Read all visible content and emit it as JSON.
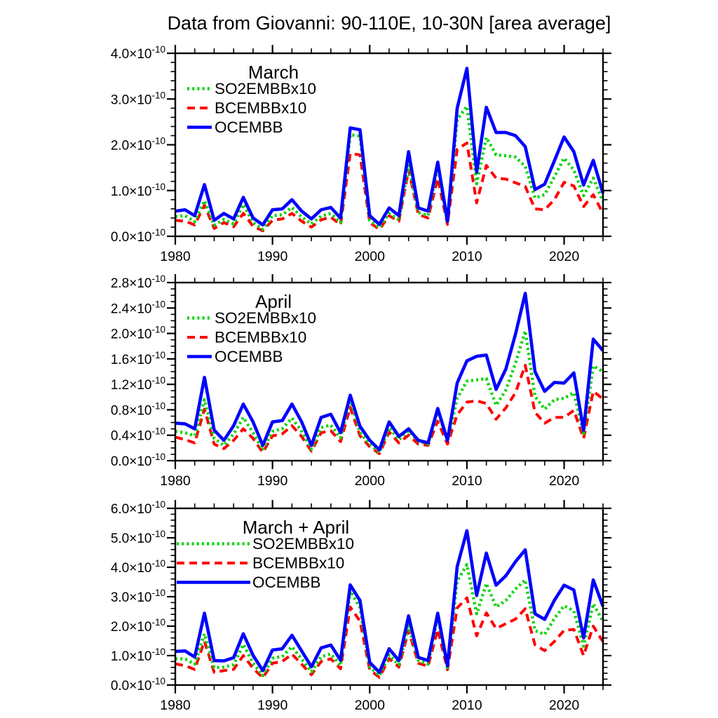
{
  "title": "Data from Giovanni: 90-110E, 10-30N [area average]",
  "x_axis": {
    "tick_labels": [
      "1980",
      "1990",
      "2000",
      "2010",
      "2020"
    ],
    "range": [
      1980,
      2024
    ],
    "minor_step_years": 2
  },
  "y_axis": {
    "exponent_suffix": "×10",
    "exponent": "-10",
    "unit": "1e-10"
  },
  "colors": {
    "so2": "#00d400",
    "bc": "#ff0000",
    "oc": "#0000ff",
    "axis": "#000000"
  },
  "chart_data": [
    {
      "type": "line",
      "title": "March",
      "x_start": 1980,
      "x_end": 2024,
      "ylim": [
        0,
        4.0
      ],
      "y_major": 1.0,
      "y_minor": 0.2,
      "unit": "1e-10",
      "legend_position": "top-left-inside",
      "series": [
        {
          "name": "SO2EMBBx10",
          "color": "#00d400",
          "style": "dotted",
          "values": [
            0.43,
            0.45,
            0.32,
            0.78,
            0.24,
            0.37,
            0.27,
            0.7,
            0.3,
            0.15,
            0.45,
            0.47,
            0.63,
            0.42,
            0.27,
            0.44,
            0.5,
            0.3,
            2.22,
            2.19,
            0.35,
            0.19,
            0.5,
            0.36,
            1.55,
            0.52,
            0.45,
            1.55,
            0.28,
            2.55,
            2.84,
            1.15,
            2.16,
            1.78,
            1.76,
            1.73,
            1.53,
            0.84,
            0.91,
            1.3,
            1.71,
            1.45,
            0.89,
            1.27,
            0.76
          ]
        },
        {
          "name": "BCEMBBx10",
          "color": "#ff0000",
          "style": "dashed",
          "values": [
            0.35,
            0.33,
            0.25,
            0.68,
            0.17,
            0.3,
            0.21,
            0.5,
            0.22,
            0.12,
            0.35,
            0.38,
            0.5,
            0.33,
            0.2,
            0.36,
            0.42,
            0.25,
            1.81,
            1.78,
            0.3,
            0.15,
            0.45,
            0.33,
            1.45,
            0.48,
            0.4,
            1.27,
            0.26,
            1.9,
            2.04,
            0.73,
            1.55,
            1.27,
            1.25,
            1.17,
            1.09,
            0.6,
            0.58,
            0.8,
            1.18,
            1.1,
            0.65,
            0.91,
            0.5
          ]
        },
        {
          "name": "OCEMBB",
          "color": "#0000ff",
          "style": "solid",
          "values": [
            0.55,
            0.58,
            0.45,
            1.13,
            0.35,
            0.5,
            0.38,
            0.85,
            0.4,
            0.25,
            0.58,
            0.6,
            0.8,
            0.55,
            0.38,
            0.58,
            0.63,
            0.4,
            2.37,
            2.33,
            0.45,
            0.26,
            0.62,
            0.45,
            1.85,
            0.62,
            0.55,
            1.62,
            0.33,
            2.8,
            3.67,
            1.4,
            2.82,
            2.27,
            2.27,
            2.2,
            1.96,
            1.02,
            1.14,
            1.65,
            2.17,
            1.85,
            1.12,
            1.66,
            0.94
          ]
        }
      ]
    },
    {
      "type": "line",
      "title": "April",
      "x_start": 1980,
      "x_end": 2024,
      "ylim": [
        0,
        2.8
      ],
      "y_major": 0.4,
      "y_minor": 0.1,
      "unit": "1e-10",
      "legend_position": "top-left-inside",
      "series": [
        {
          "name": "SO2EMBBx10",
          "color": "#00d400",
          "style": "dotted",
          "values": [
            0.46,
            0.44,
            0.39,
            0.96,
            0.35,
            0.24,
            0.42,
            0.68,
            0.44,
            0.17,
            0.46,
            0.5,
            0.67,
            0.46,
            0.18,
            0.52,
            0.56,
            0.36,
            0.97,
            0.44,
            0.26,
            0.13,
            0.52,
            0.33,
            0.47,
            0.31,
            0.26,
            0.79,
            0.31,
            0.98,
            1.25,
            1.27,
            1.29,
            0.87,
            1.11,
            1.53,
            2.04,
            1.01,
            0.81,
            0.96,
            0.98,
            1.07,
            0.43,
            1.49,
            1.4
          ]
        },
        {
          "name": "BCEMBBx10",
          "color": "#ff0000",
          "style": "dashed",
          "values": [
            0.37,
            0.33,
            0.28,
            0.81,
            0.26,
            0.19,
            0.32,
            0.5,
            0.35,
            0.13,
            0.39,
            0.42,
            0.55,
            0.38,
            0.15,
            0.44,
            0.47,
            0.3,
            0.84,
            0.39,
            0.22,
            0.11,
            0.45,
            0.28,
            0.4,
            0.26,
            0.24,
            0.62,
            0.26,
            0.72,
            0.92,
            0.94,
            0.9,
            0.65,
            0.83,
            1.07,
            1.5,
            0.76,
            0.59,
            0.68,
            0.68,
            0.79,
            0.35,
            1.09,
            0.97
          ]
        },
        {
          "name": "OCEMBB",
          "color": "#0000ff",
          "style": "solid",
          "values": [
            0.59,
            0.58,
            0.5,
            1.31,
            0.48,
            0.32,
            0.55,
            0.89,
            0.61,
            0.24,
            0.61,
            0.63,
            0.89,
            0.61,
            0.24,
            0.68,
            0.73,
            0.44,
            1.03,
            0.54,
            0.32,
            0.17,
            0.61,
            0.38,
            0.5,
            0.32,
            0.28,
            0.82,
            0.32,
            1.22,
            1.57,
            1.64,
            1.66,
            1.12,
            1.44,
            1.99,
            2.63,
            1.4,
            1.09,
            1.23,
            1.22,
            1.38,
            0.48,
            1.91,
            1.73
          ]
        }
      ]
    },
    {
      "type": "line",
      "title": "March + April",
      "x_start": 1980,
      "x_end": 2024,
      "ylim": [
        0,
        6.0
      ],
      "y_major": 1.0,
      "y_minor": 0.2,
      "unit": "1e-10",
      "legend_position": "top-left-inside",
      "series": [
        {
          "name": "SO2EMBBx10",
          "color": "#00d400",
          "style": "dotted",
          "values": [
            0.89,
            0.89,
            0.71,
            1.74,
            0.59,
            0.61,
            0.69,
            1.38,
            0.74,
            0.32,
            0.91,
            0.97,
            1.3,
            0.88,
            0.45,
            0.96,
            1.06,
            0.66,
            3.19,
            2.63,
            0.61,
            0.32,
            1.02,
            0.69,
            2.02,
            0.83,
            0.71,
            2.34,
            0.59,
            3.53,
            4.09,
            2.42,
            3.45,
            2.65,
            2.87,
            3.26,
            3.57,
            1.85,
            1.72,
            2.26,
            2.69,
            2.52,
            1.32,
            2.76,
            2.16
          ]
        },
        {
          "name": "BCEMBBx10",
          "color": "#ff0000",
          "style": "dashed",
          "values": [
            0.72,
            0.66,
            0.53,
            1.49,
            0.43,
            0.49,
            0.53,
            1.0,
            0.57,
            0.25,
            0.74,
            0.8,
            1.05,
            0.71,
            0.35,
            0.8,
            0.89,
            0.55,
            2.65,
            2.17,
            0.52,
            0.26,
            0.9,
            0.61,
            1.85,
            0.74,
            0.64,
            1.89,
            0.52,
            2.62,
            2.96,
            1.67,
            2.45,
            1.92,
            2.08,
            2.24,
            2.59,
            1.36,
            1.17,
            1.48,
            1.86,
            1.89,
            1.0,
            2.0,
            1.47
          ]
        },
        {
          "name": "OCEMBB",
          "color": "#0000ff",
          "style": "solid",
          "values": [
            1.14,
            1.16,
            0.95,
            2.44,
            0.83,
            0.82,
            0.93,
            1.74,
            1.01,
            0.49,
            1.19,
            1.23,
            1.69,
            1.16,
            0.62,
            1.26,
            1.36,
            0.84,
            3.4,
            2.87,
            0.77,
            0.43,
            1.23,
            0.83,
            2.35,
            0.94,
            0.83,
            2.44,
            0.65,
            4.02,
            5.24,
            3.04,
            4.48,
            3.39,
            3.71,
            4.19,
            4.59,
            2.42,
            2.23,
            2.88,
            3.39,
            3.23,
            1.6,
            3.57,
            2.67
          ]
        }
      ]
    }
  ]
}
